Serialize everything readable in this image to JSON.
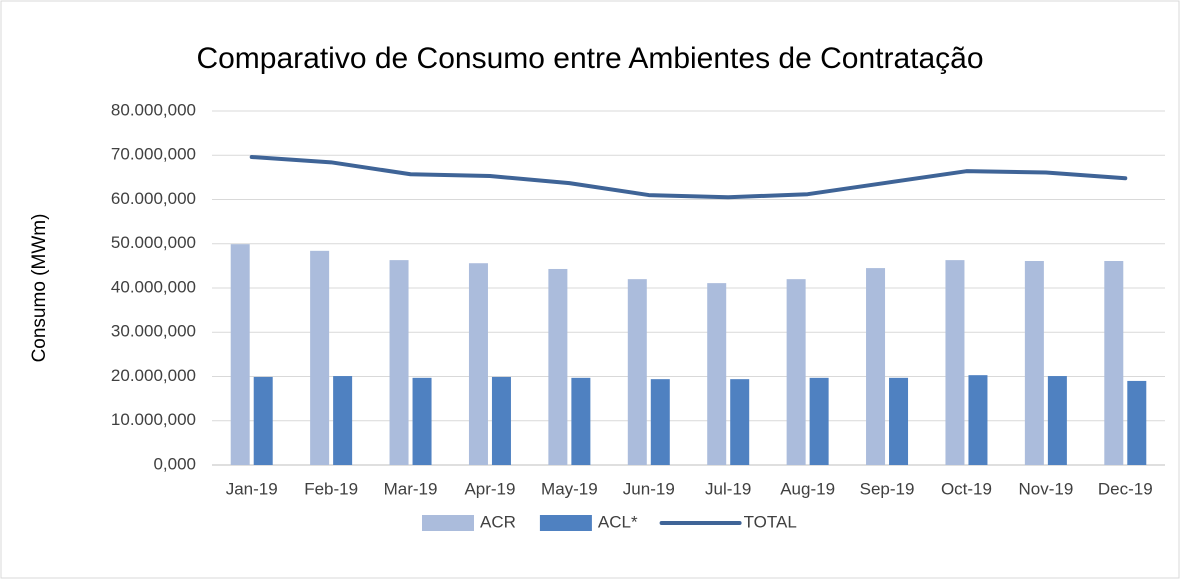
{
  "chart_data": {
    "type": "bar_line",
    "title": "Comparativo de Consumo entre Ambientes de Contratação",
    "y_label": "Consumo (MWm)",
    "categories": [
      "Jan-19",
      "Feb-19",
      "Mar-19",
      "Apr-19",
      "May-19",
      "Jun-19",
      "Jul-19",
      "Aug-19",
      "Sep-19",
      "Oct-19",
      "Nov-19",
      "Dec-19"
    ],
    "series": [
      {
        "name": "ACR",
        "type": "bar",
        "color": "#abbcdc",
        "values": [
          49900000,
          48400000,
          46300000,
          45600000,
          44300000,
          42000000,
          41100000,
          42000000,
          44500000,
          46300000,
          46100000,
          46100000
        ]
      },
      {
        "name": "ACL*",
        "type": "bar",
        "color": "#4f81c1",
        "values": [
          19900000,
          20100000,
          19700000,
          19900000,
          19700000,
          19400000,
          19400000,
          19700000,
          19700000,
          20300000,
          20100000,
          19000000
        ]
      },
      {
        "name": "TOTAL",
        "type": "line",
        "color": "#3f6497",
        "values": [
          69600000,
          68400000,
          65700000,
          65300000,
          63700000,
          61000000,
          60500000,
          61200000,
          63800000,
          66400000,
          66100000,
          64800000
        ]
      }
    ],
    "ylim": [
      0,
      80000000
    ],
    "yticks": [
      {
        "value": 0,
        "label": "0,000"
      },
      {
        "value": 10000000,
        "label": "10.000,000"
      },
      {
        "value": 20000000,
        "label": "20.000,000"
      },
      {
        "value": 30000000,
        "label": "30.000,000"
      },
      {
        "value": 40000000,
        "label": "40.000,000"
      },
      {
        "value": 50000000,
        "label": "50.000,000"
      },
      {
        "value": 60000000,
        "label": "60.000,000"
      },
      {
        "value": 70000000,
        "label": "70.000,000"
      },
      {
        "value": 80000000,
        "label": "80.000,000"
      }
    ],
    "grid": true,
    "legend": "bottom"
  }
}
